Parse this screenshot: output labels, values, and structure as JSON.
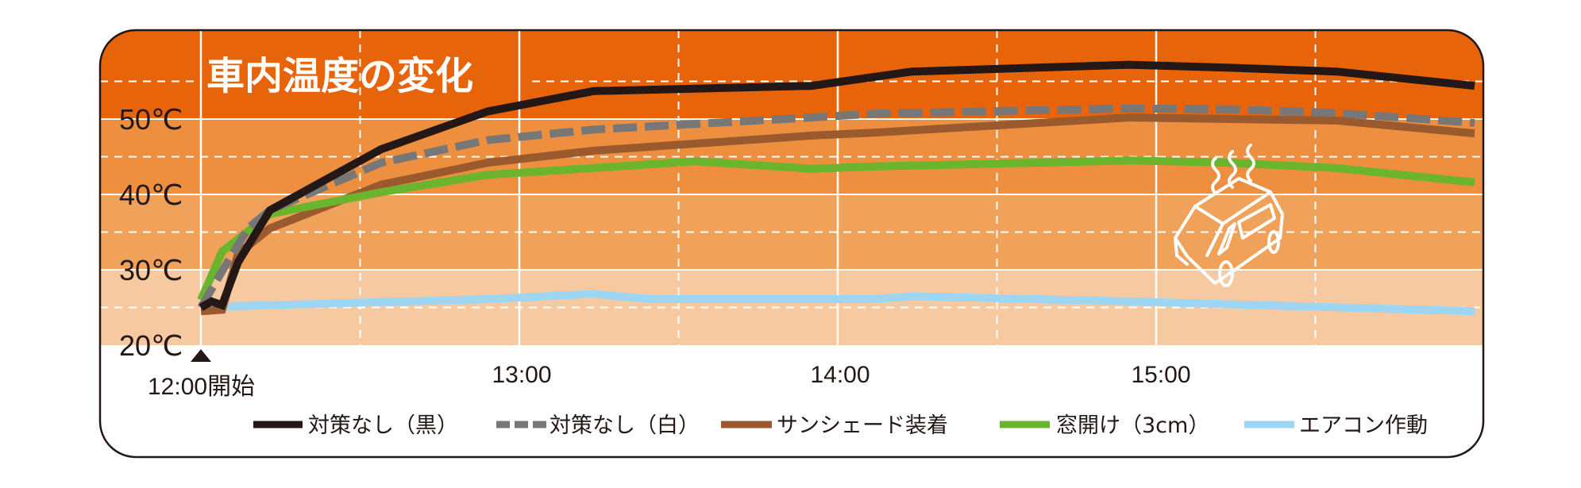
{
  "chart_data": {
    "type": "line",
    "title": "車内温度の変化",
    "xlabel": "",
    "ylabel": "",
    "x_ticks": [
      "12:00開始",
      "13:00",
      "14:00",
      "15:00"
    ],
    "y_ticks": [
      "20℃",
      "30℃",
      "40℃",
      "50℃"
    ],
    "ylim": [
      20,
      62
    ],
    "xlim": [
      "11:41",
      "16:00"
    ],
    "grid": true,
    "legend_position": "bottom",
    "background_bands": [
      {
        "from": 20,
        "to": 30,
        "color": "#F7C9A0"
      },
      {
        "from": 30,
        "to": 40,
        "color": "#F1A25A"
      },
      {
        "from": 40,
        "to": 50,
        "color": "#EE8F3F"
      },
      {
        "from": 50,
        "to": 62,
        "color": "#E8640A"
      }
    ],
    "series": [
      {
        "name": "対策なし（黒）",
        "color": "#231815",
        "style": "solid",
        "x": [
          "12:00",
          "12:02",
          "12:04",
          "12:07",
          "12:13",
          "12:34",
          "12:54",
          "13:14",
          "13:55",
          "14:14",
          "14:55",
          "15:14",
          "15:34",
          "16:00"
        ],
        "values": [
          25.0,
          25.8,
          25.3,
          31.0,
          37.9,
          46.0,
          51.0,
          53.7,
          54.4,
          56.3,
          57.2,
          56.8,
          56.3,
          54.4
        ]
      },
      {
        "name": "対策なし（白）",
        "color": "#777777",
        "style": "dashed",
        "x": [
          "12:00",
          "12:04",
          "12:09",
          "12:13",
          "12:34",
          "12:54",
          "13:14",
          "13:55",
          "14:07",
          "14:54",
          "15:14",
          "15:34",
          "16:00"
        ],
        "values": [
          25.0,
          29.8,
          35.6,
          37.9,
          44.2,
          47.2,
          48.6,
          50.2,
          50.7,
          51.4,
          51.3,
          50.8,
          49.5
        ]
      },
      {
        "name": "サンシェード装着",
        "color": "#9A5A2E",
        "style": "solid",
        "x": [
          "12:00",
          "12:04",
          "12:07",
          "12:13",
          "12:34",
          "12:54",
          "13:14",
          "13:55",
          "14:07",
          "14:55",
          "15:34",
          "16:00"
        ],
        "values": [
          24.5,
          24.7,
          32.1,
          35.5,
          41.3,
          44.2,
          45.8,
          47.8,
          48.2,
          50.2,
          49.8,
          48.1
        ]
      },
      {
        "name": "窓開け（3cm）",
        "color": "#6AB42E",
        "style": "solid",
        "x": [
          "12:00",
          "12:04",
          "12:13",
          "12:34",
          "12:54",
          "13:14",
          "13:33",
          "13:55",
          "14:07",
          "14:55",
          "15:14",
          "15:34",
          "16:00"
        ],
        "values": [
          26.0,
          32.4,
          37.4,
          40.3,
          42.6,
          43.5,
          44.4,
          43.4,
          43.7,
          44.5,
          44.2,
          43.5,
          41.6
        ]
      },
      {
        "name": "エアコン作動",
        "color": "#9DD6F2",
        "style": "solid",
        "x": [
          "12:00",
          "12:03",
          "12:54",
          "13:14",
          "13:25",
          "14:07",
          "14:14",
          "14:55",
          "16:00"
        ],
        "values": [
          25.2,
          25.1,
          26.1,
          26.8,
          26.1,
          26.1,
          26.5,
          25.8,
          24.5
        ]
      }
    ]
  },
  "icons": {
    "start_marker": "triangle-up-icon",
    "car": "hot-car-icon"
  }
}
